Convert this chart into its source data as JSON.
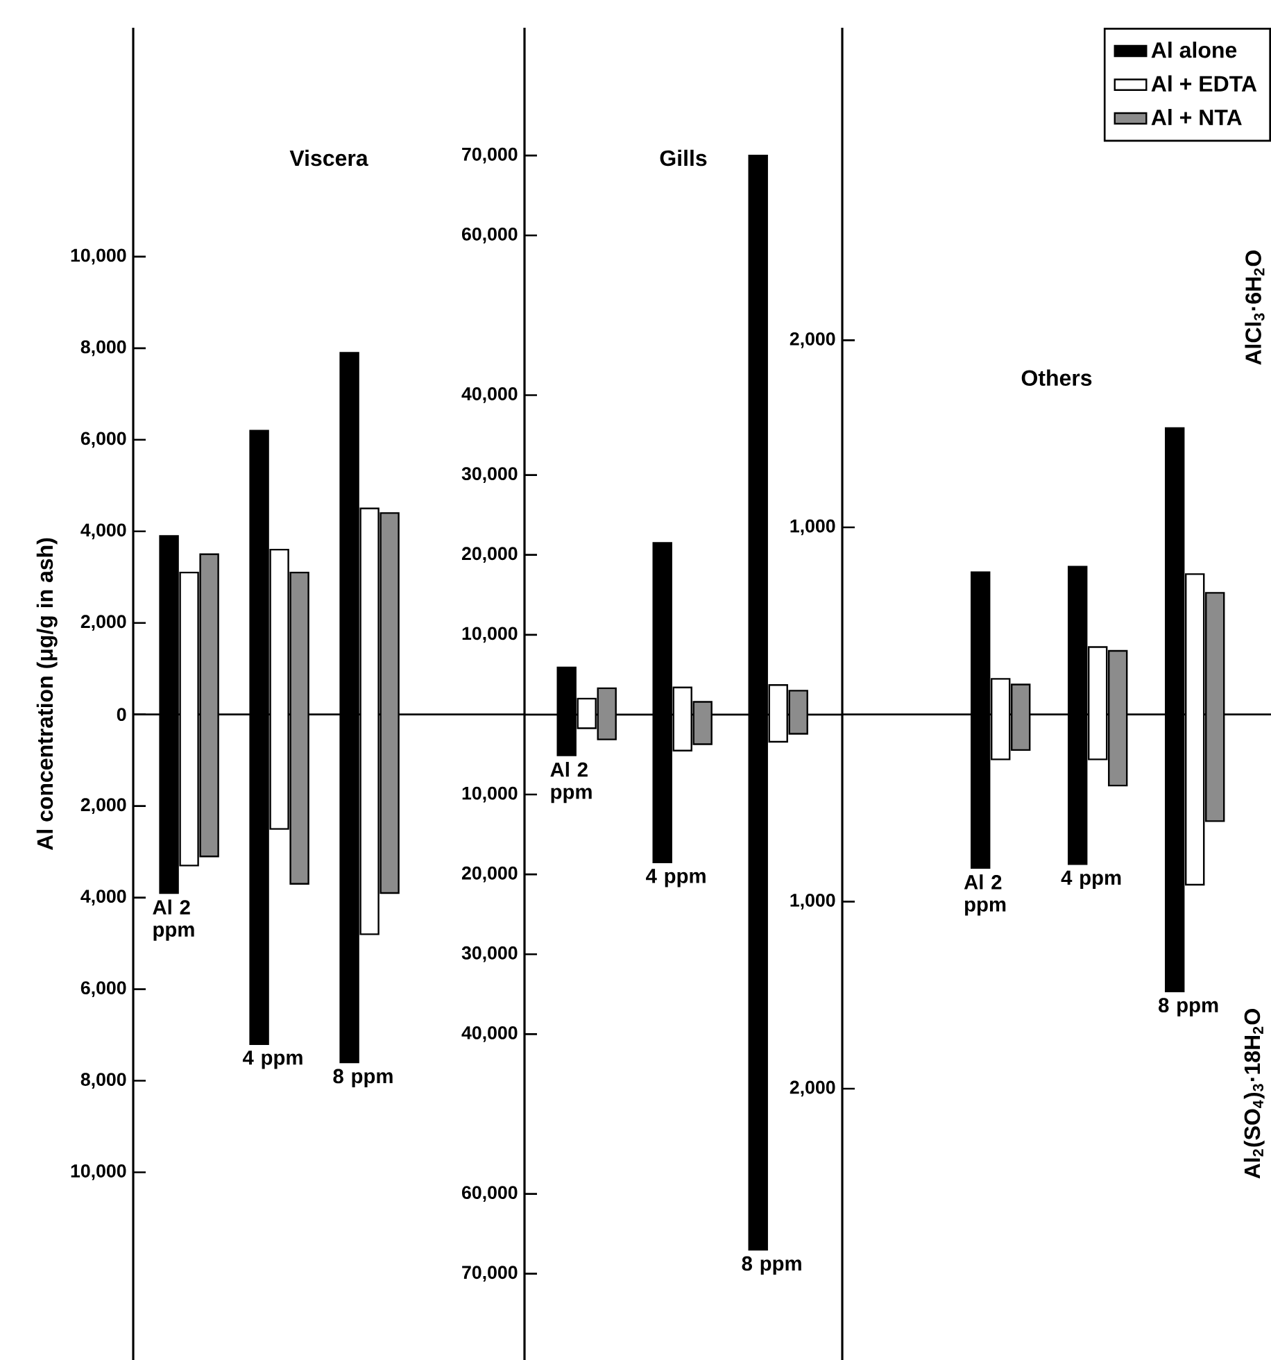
{
  "chart_data": [
    {
      "type": "bar",
      "title": "Viscera",
      "ylabel": "Al concentration (μg/g in ash)",
      "categories": [
        "Al 2 ppm",
        "4 ppm",
        "8 ppm"
      ],
      "series": [
        {
          "color": "#000000",
          "base": [
            -3900,
            -7200,
            -7600
          ],
          "values": [
            7800,
            13400,
            15500
          ]
        },
        {
          "color": "#ffffff",
          "base": [
            -3300,
            -2500,
            -4800
          ],
          "values": [
            6400,
            6100,
            9300
          ]
        },
        {
          "color": "#8c8c8c",
          "base": [
            -3100,
            -3700,
            -3900
          ],
          "values": [
            6600,
            6800,
            8300
          ]
        }
      ],
      "ylim": [
        -14100,
        15000
      ],
      "yticks": [
        {
          "value": 10000,
          "label": "10,000"
        },
        {
          "value": 8000,
          "label": "8,000"
        },
        {
          "value": 6000,
          "label": "6,000"
        },
        {
          "value": 4000,
          "label": "4,000"
        },
        {
          "value": 2000,
          "label": "2,000"
        },
        0,
        {
          "value": -2000,
          "label": "2,000"
        },
        {
          "value": -4000,
          "label": "4,000"
        },
        {
          "value": -6000,
          "label": "6,000"
        },
        {
          "value": -8000,
          "label": "8,000"
        },
        {
          "value": -10000,
          "label": "10,000"
        }
      ]
    },
    {
      "type": "bar",
      "title": "Gills",
      "categories": [
        "Al 2 ppm",
        "4 ppm",
        "8 ppm"
      ],
      "series": [
        {
          "color": "#000000",
          "base": [
            -5100,
            -18500,
            -67000
          ],
          "values": [
            11000,
            40000,
            137000
          ]
        },
        {
          "color": "#ffffff",
          "base": [
            -1700,
            -4500,
            -3400
          ],
          "values": [
            3700,
            7900,
            7100
          ]
        },
        {
          "color": "#8c8c8c",
          "base": [
            -3100,
            -3700,
            -2400
          ],
          "values": [
            6400,
            5300,
            5400
          ]
        }
      ],
      "ylim": [
        -80800,
        86000
      ],
      "yticks": [
        {
          "value": 70000,
          "label": "70,000"
        },
        {
          "value": 60000,
          "label": "60,000"
        },
        {
          "value": 40000,
          "label": "40,000"
        },
        {
          "value": 30000,
          "label": "30,000"
        },
        {
          "value": 20000,
          "label": "20,000"
        },
        {
          "value": 10000,
          "label": "10,000"
        },
        {
          "value": -10000,
          "label": "10,000"
        },
        {
          "value": -20000,
          "label": "20,000"
        },
        {
          "value": -30000,
          "label": "30,000"
        },
        {
          "value": -40000,
          "label": "40,000"
        },
        {
          "value": -60000,
          "label": "60,000"
        },
        {
          "value": -70000,
          "label": "70,000"
        }
      ]
    },
    {
      "type": "bar",
      "title": "Others",
      "categories": [
        "Al 2 ppm",
        "4 ppm",
        "8 ppm"
      ],
      "series": [
        {
          "name": "Al alone",
          "color": "#000000",
          "base": [
            -820,
            -800,
            -1480
          ],
          "values": [
            1580,
            1590,
            3010
          ]
        },
        {
          "name": "Al + EDTA",
          "color": "#ffffff",
          "base": [
            -240,
            -240,
            -910
          ],
          "values": [
            430,
            600,
            1660
          ]
        },
        {
          "name": "Al + NTA",
          "color": "#8c8c8c",
          "base": [
            -190,
            -380,
            -570
          ],
          "values": [
            350,
            720,
            1220
          ]
        }
      ],
      "ylim": [
        -3450,
        3670
      ],
      "yticks": [
        {
          "value": 2000,
          "label": "2,000"
        },
        {
          "value": 1000,
          "label": "1,000"
        },
        {
          "value": -1000,
          "label": "1,000"
        },
        {
          "value": -2000,
          "label": "2,000"
        }
      ],
      "legend": "top right",
      "annotations": [
        "AlCl$_{3}$·6H$_{2}$O",
        "Al$_{2}$(SO$_{4}$)$_{3}$·18H$_{2}$O"
      ]
    }
  ]
}
